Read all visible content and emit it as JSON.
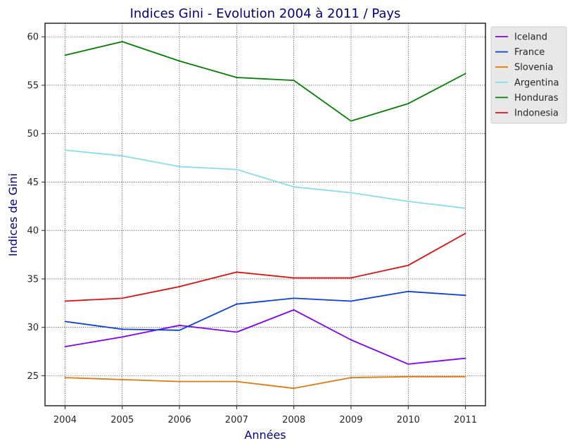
{
  "chart_data": {
    "type": "line",
    "title": "Indices Gini - Evolution 2004 à 2011 / Pays",
    "xlabel": "Années",
    "ylabel": "Indices de Gini",
    "x": [
      2004,
      2005,
      2006,
      2007,
      2008,
      2009,
      2010,
      2011
    ],
    "xlim": [
      2003.65,
      2011.35
    ],
    "ylim": [
      21.9,
      61.4
    ],
    "yticks": [
      25,
      30,
      35,
      40,
      45,
      50,
      55,
      60
    ],
    "grid": true,
    "legend_position": "outside-top-right",
    "series": [
      {
        "name": "Iceland",
        "color": "#7f00ff",
        "values": [
          28.0,
          29.0,
          30.2,
          29.5,
          31.8,
          28.7,
          26.2,
          26.8
        ]
      },
      {
        "name": "France",
        "color": "#0a3fe0",
        "values": [
          30.6,
          29.8,
          29.7,
          32.4,
          33.0,
          32.7,
          33.7,
          33.3
        ]
      },
      {
        "name": "Slovenia",
        "color": "#e07a10",
        "values": [
          24.8,
          24.6,
          24.4,
          24.4,
          23.7,
          24.8,
          24.9,
          24.9
        ]
      },
      {
        "name": "Argentina",
        "color": "#87dcf0",
        "values": [
          48.3,
          47.7,
          46.6,
          46.3,
          44.5,
          43.9,
          43.0,
          42.3
        ]
      },
      {
        "name": "Honduras",
        "color": "#008000",
        "values": [
          58.1,
          59.5,
          57.5,
          55.8,
          55.5,
          51.3,
          53.1,
          56.2
        ]
      },
      {
        "name": "Indonesia",
        "color": "#e01010",
        "values": [
          32.7,
          33.0,
          34.2,
          35.7,
          35.1,
          35.1,
          36.4,
          39.7
        ]
      }
    ]
  }
}
